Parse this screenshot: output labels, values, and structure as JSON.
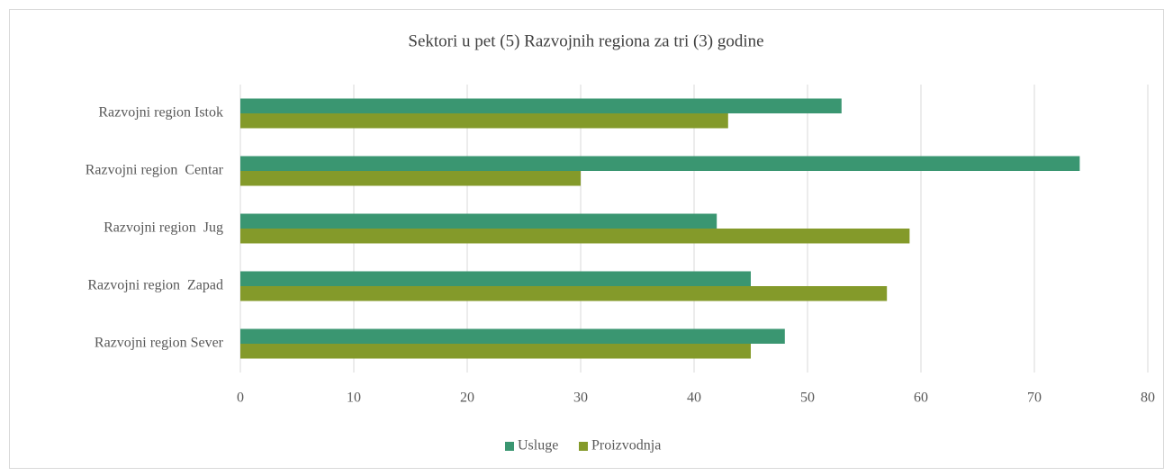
{
  "chart_data": {
    "type": "hbar",
    "title": "Sektori u pet (5) Razvojnih regiona za tri (3) godine",
    "categories": [
      "Razvojni region Istok",
      "Razvojni region  Centar",
      "Razvojni region  Jug",
      "Razvojni region  Zapad",
      "Razvojni region Sever"
    ],
    "series": [
      {
        "name": "Usluge",
        "color": "#3a9671",
        "values": [
          53,
          74,
          42,
          45,
          48
        ]
      },
      {
        "name": "Proizvodnja",
        "color": "#849a2a",
        "values": [
          43,
          30,
          59,
          57,
          45
        ]
      }
    ],
    "xlim": [
      0,
      80
    ],
    "xticks": [
      0,
      10,
      20,
      30,
      40,
      50,
      60,
      70,
      80
    ],
    "grid": true,
    "legend": "bottom"
  }
}
